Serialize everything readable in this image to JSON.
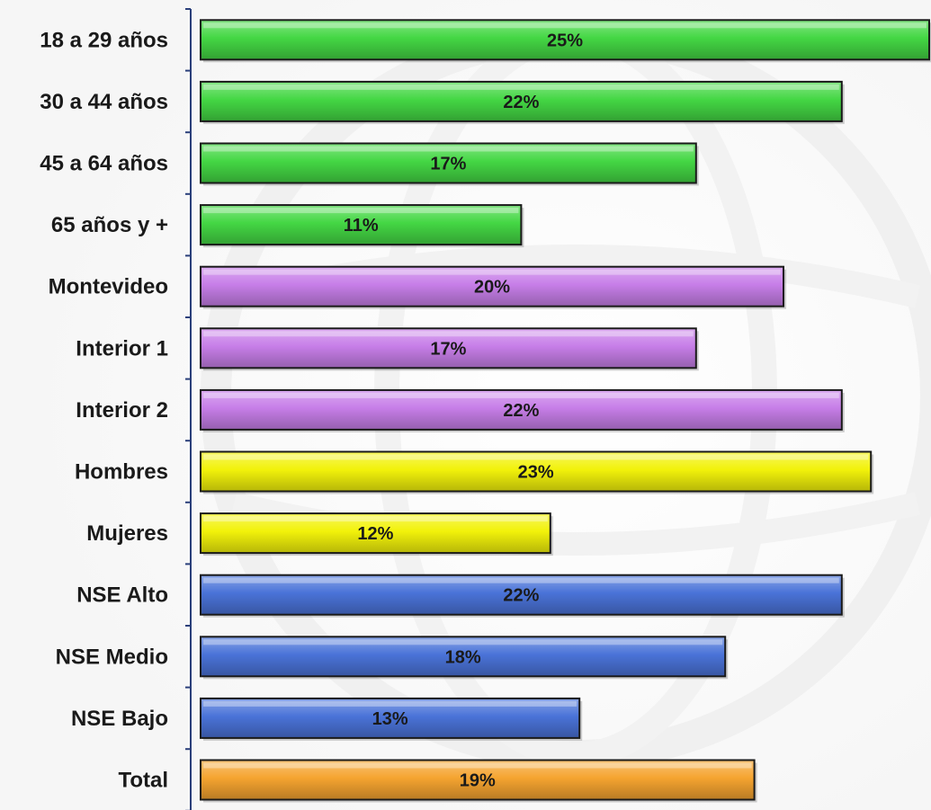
{
  "chart_data": {
    "type": "bar",
    "orientation": "horizontal",
    "title": "",
    "xlabel": "",
    "ylabel": "",
    "categories": [
      "18 a 29 años",
      "30 a 44 años",
      "45 a 64 años",
      "65 años y +",
      "Montevideo",
      "Interior 1",
      "Interior 2",
      "Hombres",
      "Mujeres",
      "NSE Alto",
      "NSE Medio",
      "NSE Bajo",
      "Total"
    ],
    "values": [
      25,
      22,
      17,
      11,
      20,
      17,
      22,
      23,
      12,
      22,
      18,
      13,
      19
    ],
    "value_labels": [
      "25%",
      "22%",
      "17%",
      "11%",
      "20%",
      "17%",
      "22%",
      "23%",
      "12%",
      "22%",
      "18%",
      "13%",
      "19%"
    ],
    "bar_colors": [
      "#44d744",
      "#44d744",
      "#44d744",
      "#44d744",
      "#c77ee8",
      "#c77ee8",
      "#c77ee8",
      "#f2f20a",
      "#f2f20a",
      "#4a73d8",
      "#4a73d8",
      "#4a73d8",
      "#f5a430"
    ],
    "xlim": [
      0,
      25
    ],
    "grid": false,
    "legend": "none"
  }
}
